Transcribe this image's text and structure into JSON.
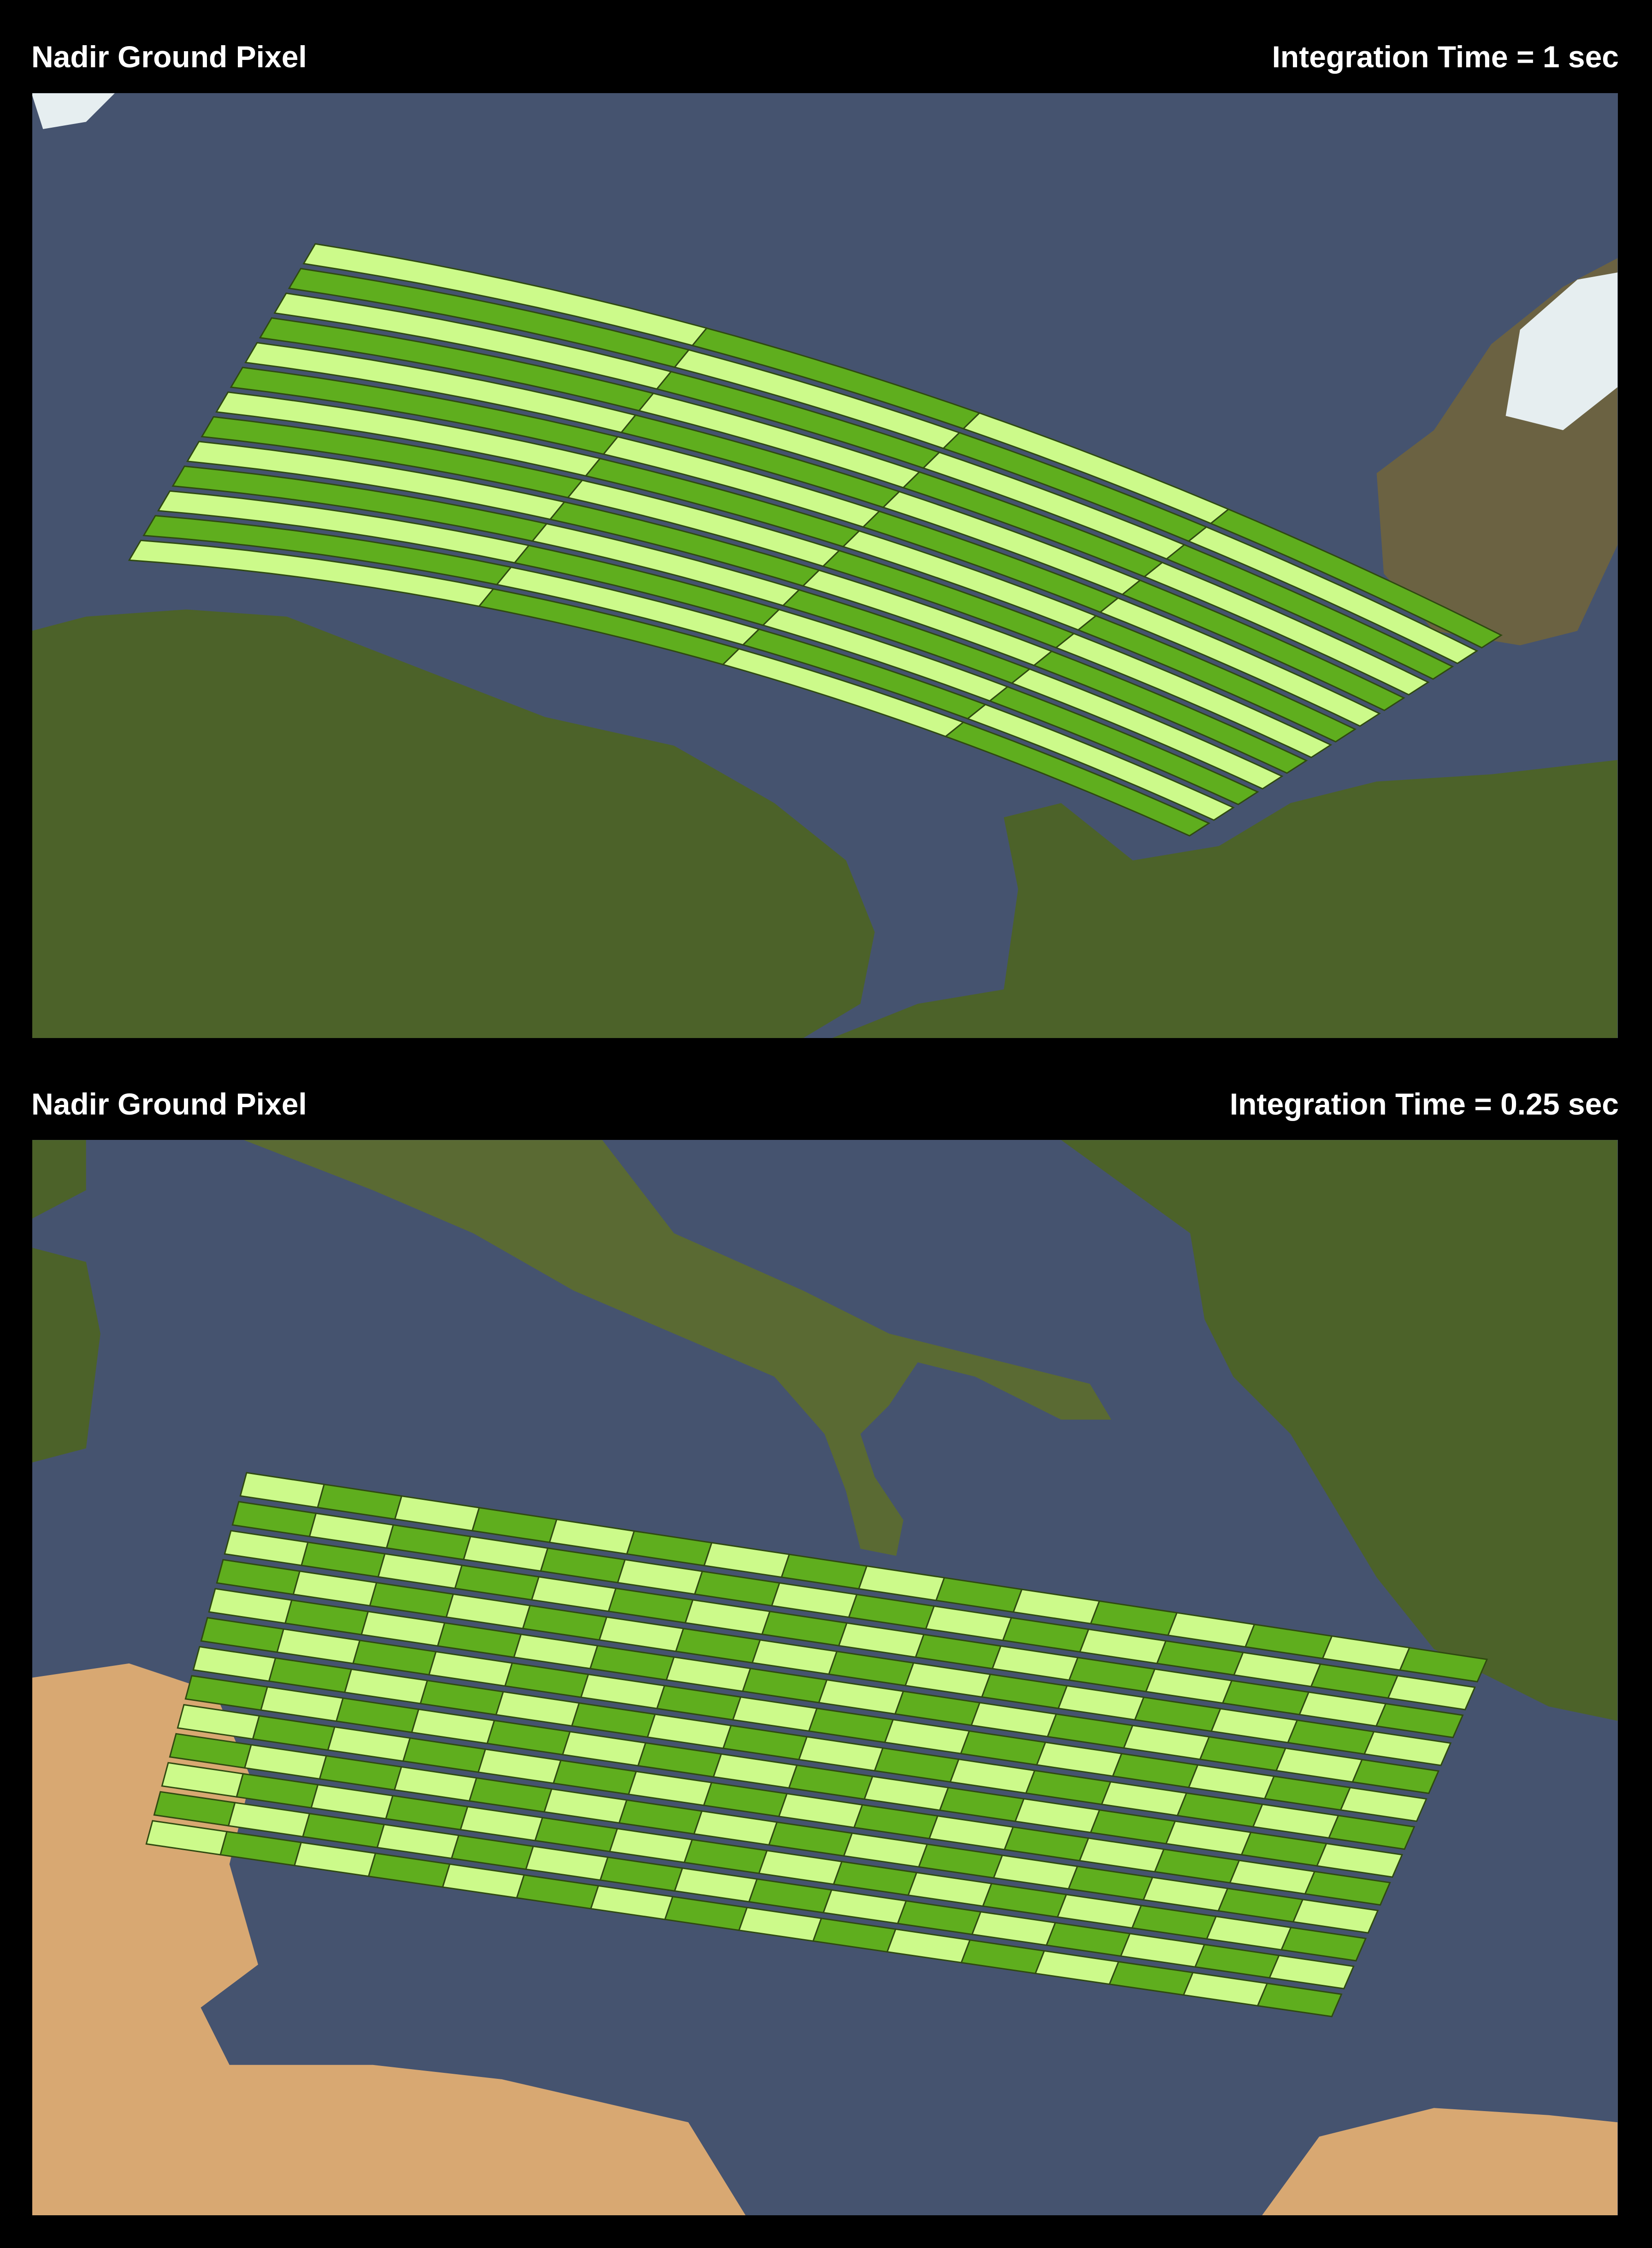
{
  "panels": [
    {
      "title_left": "Nadir Ground Pixel",
      "title_right": "Integration Time = 1 sec",
      "grid": {
        "rows": 13,
        "columns": 4
      }
    },
    {
      "title_left": "Nadir Ground Pixel",
      "title_right": "Integration Time = 0.25 sec",
      "grid": {
        "rows": 13,
        "columns": 16
      }
    }
  ],
  "colors": {
    "pixel_light": "#ccfa8a",
    "pixel_dark": "#5fae1e",
    "sea": "#45536f",
    "land": "#4c6229",
    "desert": "#d8a872",
    "ice": "#e6eef0",
    "background": "#000000"
  }
}
